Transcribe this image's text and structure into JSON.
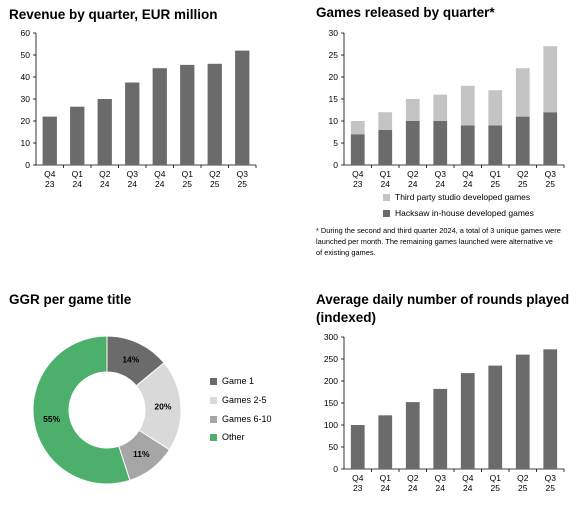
{
  "colors": {
    "bar": "#6b6b6b",
    "third_party": "#c4c4c4",
    "game1": "#6b6b6b",
    "games2_5": "#d9d9d9",
    "games6_10": "#a6a6a6",
    "other": "#4daf6c"
  },
  "chart_data": [
    {
      "type": "bar",
      "title": "Revenue by quarter, EUR million",
      "categories": [
        [
          "Q4",
          "23"
        ],
        [
          "Q1",
          "24"
        ],
        [
          "Q2",
          "24"
        ],
        [
          "Q3",
          "24"
        ],
        [
          "Q4",
          "24"
        ],
        [
          "Q1",
          "25"
        ],
        [
          "Q2",
          "25"
        ],
        [
          "Q3",
          "25"
        ]
      ],
      "values": [
        22,
        26.5,
        30,
        37.5,
        44,
        45.5,
        46,
        52
      ],
      "ylim": [
        0,
        60
      ],
      "yticks": [
        0,
        10,
        20,
        30,
        40,
        50,
        60
      ],
      "grid": false
    },
    {
      "type": "bar",
      "stacked": true,
      "title": "Games released by quarter*",
      "categories": [
        [
          "Q4",
          "23"
        ],
        [
          "Q1",
          "24"
        ],
        [
          "Q2",
          "24"
        ],
        [
          "Q3",
          "24"
        ],
        [
          "Q4",
          "24"
        ],
        [
          "Q1",
          "25"
        ],
        [
          "Q2",
          "25"
        ],
        [
          "Q3",
          "25"
        ]
      ],
      "series": [
        {
          "name": "Hacksaw in-house developed games",
          "values": [
            7,
            8,
            10,
            10,
            9,
            9,
            11,
            12
          ]
        },
        {
          "name": "Third party studio developed games",
          "values": [
            3,
            4,
            5,
            6,
            9,
            8,
            11,
            15
          ]
        }
      ],
      "ylim": [
        0,
        30
      ],
      "yticks": [
        0,
        5,
        10,
        15,
        20,
        25,
        30
      ],
      "legend": "bottom",
      "footnote": [
        "* During the second and third quarter 2024, a total of 3 unique games were",
        "launched per month. The remaining games launched were alternative ve",
        "of existing games."
      ]
    },
    {
      "type": "pie",
      "donut": true,
      "title": "GGR per game title",
      "slices": [
        {
          "name": "Game 1",
          "value": 14,
          "label": "14%"
        },
        {
          "name": "Games 2-5",
          "value": 20,
          "label": "20%"
        },
        {
          "name": "Games 6-10",
          "value": 11,
          "label": "11%"
        },
        {
          "name": "Other",
          "value": 55,
          "label": "55%"
        }
      ],
      "legend": "right"
    },
    {
      "type": "bar",
      "title": "Average daily number of rounds played (indexed)",
      "title_lines": [
        "Average daily number of rounds played",
        "(indexed)"
      ],
      "categories": [
        [
          "Q4",
          "23"
        ],
        [
          "Q1",
          "24"
        ],
        [
          "Q2",
          "24"
        ],
        [
          "Q3",
          "24"
        ],
        [
          "Q4",
          "24"
        ],
        [
          "Q1",
          "25"
        ],
        [
          "Q2",
          "25"
        ],
        [
          "Q3",
          "25"
        ]
      ],
      "values": [
        100,
        122,
        152,
        182,
        218,
        235,
        260,
        272
      ],
      "ylim": [
        0,
        300
      ],
      "yticks": [
        0,
        50,
        100,
        150,
        200,
        250,
        300
      ],
      "grid": false
    }
  ]
}
